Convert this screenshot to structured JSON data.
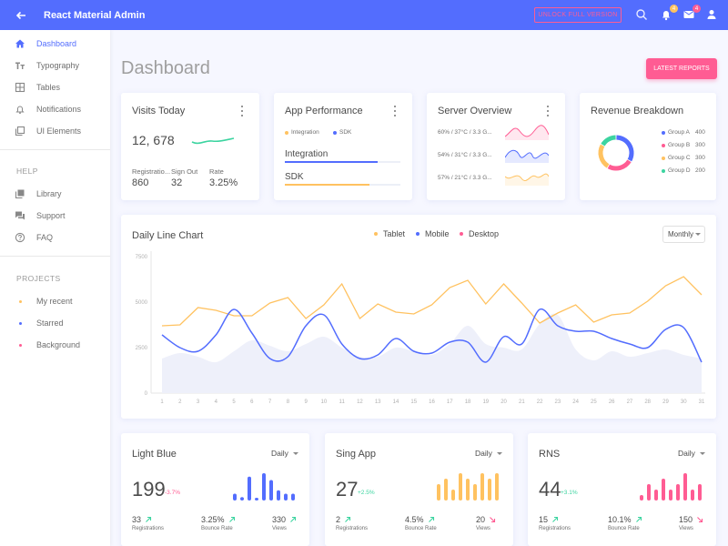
{
  "header": {
    "title": "React Material Admin",
    "unlock": "UNLOCK FULL VERSION",
    "notif_count": "4",
    "mail_count": "4"
  },
  "sidebar": {
    "main": [
      {
        "label": "Dashboard",
        "icon": "home-icon"
      },
      {
        "label": "Typography",
        "icon": "typography-icon"
      },
      {
        "label": "Tables",
        "icon": "table-icon"
      },
      {
        "label": "Notifications",
        "icon": "bell-icon"
      },
      {
        "label": "UI Elements",
        "icon": "filter-none-icon"
      }
    ],
    "help_title": "HELP",
    "help": [
      {
        "label": "Library",
        "icon": "library-icon"
      },
      {
        "label": "Support",
        "icon": "forum-icon"
      },
      {
        "label": "FAQ",
        "icon": "help-circle-icon"
      }
    ],
    "projects_title": "PROJECTS",
    "projects": [
      {
        "label": "My recent",
        "color": "#ffc260"
      },
      {
        "label": "Starred",
        "color": "#536dfe"
      },
      {
        "label": "Background",
        "color": "#ff5c93"
      }
    ]
  },
  "page": {
    "title": "Dashboard",
    "latest_reports": "LATEST REPORTS"
  },
  "visits": {
    "title": "Visits Today",
    "value": "12, 678",
    "stats": [
      {
        "label": "Registratio...",
        "value": "860"
      },
      {
        "label": "Sign Out",
        "value": "32"
      },
      {
        "label": "Rate",
        "value": "3.25%"
      }
    ]
  },
  "performance": {
    "title": "App Performance",
    "legend": [
      "Integration",
      "SDK"
    ],
    "bars": [
      {
        "label": "Integration",
        "progress": 0.8,
        "color": "#536dfe"
      },
      {
        "label": "SDK",
        "progress": 0.73,
        "color": "#ffc260"
      }
    ]
  },
  "server": {
    "title": "Server Overview",
    "rows": [
      {
        "label": "60% / 37°C / 3.3 G...",
        "color": "#ff5c93"
      },
      {
        "label": "54% / 31°C / 3.3 G...",
        "color": "#536dfe"
      },
      {
        "label": "57% / 21°C / 3.3 G...",
        "color": "#ffc260"
      }
    ]
  },
  "revenue": {
    "title": "Revenue Breakdown",
    "groups": [
      {
        "name": "Group A",
        "value": 400,
        "value_text": "400",
        "color": "#536dfe"
      },
      {
        "name": "Group B",
        "value": 300,
        "value_text": "300",
        "color": "#ff5c93"
      },
      {
        "name": "Group C",
        "value": 300,
        "value_text": "300",
        "color": "#ffc260"
      },
      {
        "name": "Group D",
        "value": 200,
        "value_text": "200",
        "color": "#3cd4a0"
      }
    ]
  },
  "daily_chart": {
    "title": "Daily Line Chart",
    "legend": [
      {
        "name": "Tablet",
        "color": "#ffc260"
      },
      {
        "name": "Mobile",
        "color": "#536dfe"
      },
      {
        "name": "Desktop",
        "color": "#ff5c93"
      }
    ],
    "period": "Monthly"
  },
  "chart_data": {
    "type": "line",
    "x": [
      1,
      2,
      3,
      4,
      5,
      6,
      7,
      8,
      9,
      10,
      11,
      12,
      13,
      14,
      15,
      16,
      17,
      18,
      19,
      20,
      21,
      22,
      23,
      24,
      25,
      26,
      27,
      28,
      29,
      30,
      31
    ],
    "x_tick_labels": [
      "1",
      "2",
      "3",
      "4",
      "5",
      "6",
      "7",
      "8",
      "9",
      "10",
      "11",
      "12",
      "13",
      "14",
      "15",
      "16",
      "17",
      "18",
      "19",
      "20",
      "21",
      "22",
      "23",
      "24",
      "25",
      "26",
      "27",
      "28",
      "29",
      "30",
      "31"
    ],
    "y_tick_labels": [
      "0",
      "2500",
      "5000",
      "7500"
    ],
    "ylim": [
      0,
      7500
    ],
    "series": [
      {
        "name": "Tablet",
        "values": [
          3700,
          3750,
          4700,
          4550,
          4250,
          4250,
          4950,
          5250,
          4100,
          4850,
          6000,
          4100,
          4900,
          4450,
          4350,
          4850,
          5800,
          6200,
          4900,
          6000,
          4950,
          3850,
          4400,
          4850,
          3900,
          4300,
          4400,
          5050,
          5900,
          6400,
          5400
        ]
      },
      {
        "name": "Mobile",
        "values": [
          3200,
          2500,
          2300,
          3200,
          4600,
          3300,
          1900,
          2000,
          3700,
          4300,
          2700,
          1900,
          2100,
          3000,
          2300,
          2200,
          2800,
          2800,
          1700,
          3100,
          2700,
          4600,
          3700,
          3400,
          3400,
          3000,
          2700,
          2500,
          3500,
          3600,
          1700
        ]
      },
      {
        "name": "Desktop",
        "values": [
          1900,
          2200,
          2000,
          1700,
          2300,
          2900,
          2600,
          2300,
          2700,
          3100,
          2500,
          2000,
          2000,
          2500,
          2300,
          2100,
          2700,
          3700,
          2700,
          2500,
          2400,
          3800,
          4300,
          2400,
          1800,
          2300,
          2000,
          2200,
          2400,
          2100,
          1900
        ]
      }
    ]
  },
  "minis": [
    {
      "title": "Light Blue",
      "period": "Daily",
      "value": "199",
      "change": "-3.7%",
      "up": false,
      "color": "#536dfe",
      "bars": [
        2,
        1,
        7,
        0,
        8,
        6,
        3,
        2,
        2
      ],
      "stats": [
        {
          "value": "33",
          "label": "Registrations",
          "up": true
        },
        {
          "value": "3.25%",
          "label": "Bounce Rate",
          "up": true
        },
        {
          "value": "330",
          "label": "Views",
          "up": true
        }
      ]
    },
    {
      "title": "Sing App",
      "period": "Daily",
      "value": "27",
      "change": "+2.5%",
      "up": true,
      "color": "#ffc260",
      "bars": [
        3,
        4,
        2,
        5,
        4,
        3,
        5,
        4,
        5
      ],
      "stats": [
        {
          "value": "2",
          "label": "Registrations",
          "up": true
        },
        {
          "value": "4.5%",
          "label": "Bounce Rate",
          "up": true
        },
        {
          "value": "20",
          "label": "Views",
          "up": false
        }
      ]
    },
    {
      "title": "RNS",
      "period": "Daily",
      "value": "44",
      "change": "+3.1%",
      "up": true,
      "color": "#ff5c93",
      "bars": [
        1,
        3,
        2,
        4,
        2,
        3,
        5,
        2,
        3
      ],
      "stats": [
        {
          "value": "15",
          "label": "Registrations",
          "up": true
        },
        {
          "value": "10.1%",
          "label": "Bounce Rate",
          "up": true
        },
        {
          "value": "150",
          "label": "Views",
          "up": false
        }
      ]
    }
  ]
}
